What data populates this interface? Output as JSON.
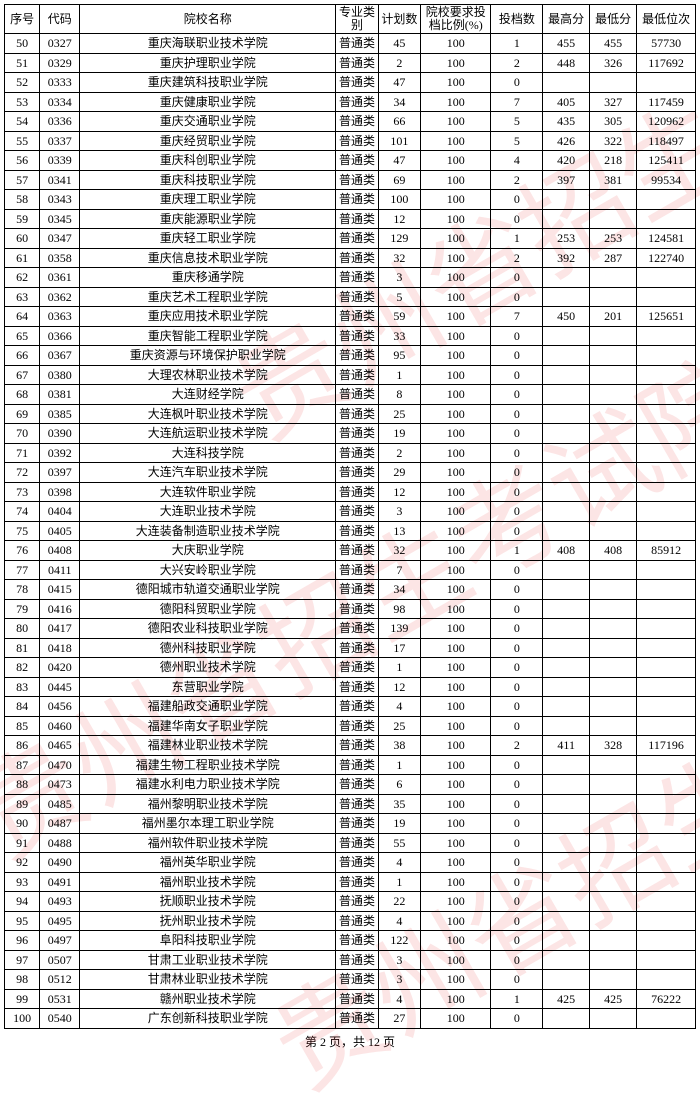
{
  "watermark_text": "贵州省招生考试院",
  "headers": {
    "seq": "序号",
    "code": "代码",
    "name": "院校名称",
    "category": "专业类别",
    "plan": "计划数",
    "ratio": "院校要求投档比例(%)",
    "filed": "投档数",
    "max": "最高分",
    "min": "最低分",
    "rank": "最低位次"
  },
  "footer": "第 2 页，共 12 页",
  "rows": [
    {
      "seq": "50",
      "code": "0327",
      "name": "重庆海联职业技术学院",
      "cat": "普通类",
      "plan": "45",
      "ratio": "100",
      "filed": "1",
      "max": "455",
      "min": "455",
      "rank": "57730"
    },
    {
      "seq": "51",
      "code": "0329",
      "name": "重庆护理职业学院",
      "cat": "普通类",
      "plan": "2",
      "ratio": "100",
      "filed": "2",
      "max": "448",
      "min": "326",
      "rank": "117692"
    },
    {
      "seq": "52",
      "code": "0333",
      "name": "重庆建筑科技职业学院",
      "cat": "普通类",
      "plan": "47",
      "ratio": "100",
      "filed": "0",
      "max": "",
      "min": "",
      "rank": ""
    },
    {
      "seq": "53",
      "code": "0334",
      "name": "重庆健康职业学院",
      "cat": "普通类",
      "plan": "34",
      "ratio": "100",
      "filed": "7",
      "max": "405",
      "min": "327",
      "rank": "117459"
    },
    {
      "seq": "54",
      "code": "0336",
      "name": "重庆交通职业学院",
      "cat": "普通类",
      "plan": "66",
      "ratio": "100",
      "filed": "5",
      "max": "435",
      "min": "305",
      "rank": "120962"
    },
    {
      "seq": "55",
      "code": "0337",
      "name": "重庆经贸职业学院",
      "cat": "普通类",
      "plan": "101",
      "ratio": "100",
      "filed": "5",
      "max": "426",
      "min": "322",
      "rank": "118497"
    },
    {
      "seq": "56",
      "code": "0339",
      "name": "重庆科创职业学院",
      "cat": "普通类",
      "plan": "47",
      "ratio": "100",
      "filed": "4",
      "max": "420",
      "min": "218",
      "rank": "125411"
    },
    {
      "seq": "57",
      "code": "0341",
      "name": "重庆科技职业学院",
      "cat": "普通类",
      "plan": "69",
      "ratio": "100",
      "filed": "2",
      "max": "397",
      "min": "381",
      "rank": "99534"
    },
    {
      "seq": "58",
      "code": "0343",
      "name": "重庆理工职业学院",
      "cat": "普通类",
      "plan": "100",
      "ratio": "100",
      "filed": "0",
      "max": "",
      "min": "",
      "rank": ""
    },
    {
      "seq": "59",
      "code": "0345",
      "name": "重庆能源职业学院",
      "cat": "普通类",
      "plan": "12",
      "ratio": "100",
      "filed": "0",
      "max": "",
      "min": "",
      "rank": ""
    },
    {
      "seq": "60",
      "code": "0347",
      "name": "重庆轻工职业学院",
      "cat": "普通类",
      "plan": "129",
      "ratio": "100",
      "filed": "1",
      "max": "253",
      "min": "253",
      "rank": "124581"
    },
    {
      "seq": "61",
      "code": "0358",
      "name": "重庆信息技术职业学院",
      "cat": "普通类",
      "plan": "32",
      "ratio": "100",
      "filed": "2",
      "max": "392",
      "min": "287",
      "rank": "122740"
    },
    {
      "seq": "62",
      "code": "0361",
      "name": "重庆移通学院",
      "cat": "普通类",
      "plan": "3",
      "ratio": "100",
      "filed": "0",
      "max": "",
      "min": "",
      "rank": ""
    },
    {
      "seq": "63",
      "code": "0362",
      "name": "重庆艺术工程职业学院",
      "cat": "普通类",
      "plan": "5",
      "ratio": "100",
      "filed": "0",
      "max": "",
      "min": "",
      "rank": ""
    },
    {
      "seq": "64",
      "code": "0363",
      "name": "重庆应用技术职业学院",
      "cat": "普通类",
      "plan": "59",
      "ratio": "100",
      "filed": "7",
      "max": "450",
      "min": "201",
      "rank": "125651"
    },
    {
      "seq": "65",
      "code": "0366",
      "name": "重庆智能工程职业学院",
      "cat": "普通类",
      "plan": "33",
      "ratio": "100",
      "filed": "0",
      "max": "",
      "min": "",
      "rank": ""
    },
    {
      "seq": "66",
      "code": "0367",
      "name": "重庆资源与环境保护职业学院",
      "cat": "普通类",
      "plan": "95",
      "ratio": "100",
      "filed": "0",
      "max": "",
      "min": "",
      "rank": ""
    },
    {
      "seq": "67",
      "code": "0380",
      "name": "大理农林职业技术学院",
      "cat": "普通类",
      "plan": "1",
      "ratio": "100",
      "filed": "0",
      "max": "",
      "min": "",
      "rank": ""
    },
    {
      "seq": "68",
      "code": "0381",
      "name": "大连财经学院",
      "cat": "普通类",
      "plan": "8",
      "ratio": "100",
      "filed": "0",
      "max": "",
      "min": "",
      "rank": ""
    },
    {
      "seq": "69",
      "code": "0385",
      "name": "大连枫叶职业技术学院",
      "cat": "普通类",
      "plan": "25",
      "ratio": "100",
      "filed": "0",
      "max": "",
      "min": "",
      "rank": ""
    },
    {
      "seq": "70",
      "code": "0390",
      "name": "大连航运职业技术学院",
      "cat": "普通类",
      "plan": "19",
      "ratio": "100",
      "filed": "0",
      "max": "",
      "min": "",
      "rank": ""
    },
    {
      "seq": "71",
      "code": "0392",
      "name": "大连科技学院",
      "cat": "普通类",
      "plan": "2",
      "ratio": "100",
      "filed": "0",
      "max": "",
      "min": "",
      "rank": ""
    },
    {
      "seq": "72",
      "code": "0397",
      "name": "大连汽车职业技术学院",
      "cat": "普通类",
      "plan": "29",
      "ratio": "100",
      "filed": "0",
      "max": "",
      "min": "",
      "rank": ""
    },
    {
      "seq": "73",
      "code": "0398",
      "name": "大连软件职业学院",
      "cat": "普通类",
      "plan": "12",
      "ratio": "100",
      "filed": "0",
      "max": "",
      "min": "",
      "rank": ""
    },
    {
      "seq": "74",
      "code": "0404",
      "name": "大连职业技术学院",
      "cat": "普通类",
      "plan": "3",
      "ratio": "100",
      "filed": "0",
      "max": "",
      "min": "",
      "rank": ""
    },
    {
      "seq": "75",
      "code": "0405",
      "name": "大连装备制造职业技术学院",
      "cat": "普通类",
      "plan": "13",
      "ratio": "100",
      "filed": "0",
      "max": "",
      "min": "",
      "rank": ""
    },
    {
      "seq": "76",
      "code": "0408",
      "name": "大庆职业学院",
      "cat": "普通类",
      "plan": "32",
      "ratio": "100",
      "filed": "1",
      "max": "408",
      "min": "408",
      "rank": "85912"
    },
    {
      "seq": "77",
      "code": "0411",
      "name": "大兴安岭职业学院",
      "cat": "普通类",
      "plan": "7",
      "ratio": "100",
      "filed": "0",
      "max": "",
      "min": "",
      "rank": ""
    },
    {
      "seq": "78",
      "code": "0415",
      "name": "德阳城市轨道交通职业学院",
      "cat": "普通类",
      "plan": "34",
      "ratio": "100",
      "filed": "0",
      "max": "",
      "min": "",
      "rank": ""
    },
    {
      "seq": "79",
      "code": "0416",
      "name": "德阳科贸职业学院",
      "cat": "普通类",
      "plan": "98",
      "ratio": "100",
      "filed": "0",
      "max": "",
      "min": "",
      "rank": ""
    },
    {
      "seq": "80",
      "code": "0417",
      "name": "德阳农业科技职业学院",
      "cat": "普通类",
      "plan": "139",
      "ratio": "100",
      "filed": "0",
      "max": "",
      "min": "",
      "rank": ""
    },
    {
      "seq": "81",
      "code": "0418",
      "name": "德州科技职业学院",
      "cat": "普通类",
      "plan": "17",
      "ratio": "100",
      "filed": "0",
      "max": "",
      "min": "",
      "rank": ""
    },
    {
      "seq": "82",
      "code": "0420",
      "name": "德州职业技术学院",
      "cat": "普通类",
      "plan": "1",
      "ratio": "100",
      "filed": "0",
      "max": "",
      "min": "",
      "rank": ""
    },
    {
      "seq": "83",
      "code": "0445",
      "name": "东营职业学院",
      "cat": "普通类",
      "plan": "12",
      "ratio": "100",
      "filed": "0",
      "max": "",
      "min": "",
      "rank": ""
    },
    {
      "seq": "84",
      "code": "0456",
      "name": "福建船政交通职业学院",
      "cat": "普通类",
      "plan": "4",
      "ratio": "100",
      "filed": "0",
      "max": "",
      "min": "",
      "rank": ""
    },
    {
      "seq": "85",
      "code": "0460",
      "name": "福建华南女子职业学院",
      "cat": "普通类",
      "plan": "25",
      "ratio": "100",
      "filed": "0",
      "max": "",
      "min": "",
      "rank": ""
    },
    {
      "seq": "86",
      "code": "0465",
      "name": "福建林业职业技术学院",
      "cat": "普通类",
      "plan": "38",
      "ratio": "100",
      "filed": "2",
      "max": "411",
      "min": "328",
      "rank": "117196"
    },
    {
      "seq": "87",
      "code": "0470",
      "name": "福建生物工程职业技术学院",
      "cat": "普通类",
      "plan": "1",
      "ratio": "100",
      "filed": "0",
      "max": "",
      "min": "",
      "rank": ""
    },
    {
      "seq": "88",
      "code": "0473",
      "name": "福建水利电力职业技术学院",
      "cat": "普通类",
      "plan": "6",
      "ratio": "100",
      "filed": "0",
      "max": "",
      "min": "",
      "rank": ""
    },
    {
      "seq": "89",
      "code": "0485",
      "name": "福州黎明职业技术学院",
      "cat": "普通类",
      "plan": "35",
      "ratio": "100",
      "filed": "0",
      "max": "",
      "min": "",
      "rank": ""
    },
    {
      "seq": "90",
      "code": "0487",
      "name": "福州墨尔本理工职业学院",
      "cat": "普通类",
      "plan": "19",
      "ratio": "100",
      "filed": "0",
      "max": "",
      "min": "",
      "rank": ""
    },
    {
      "seq": "91",
      "code": "0488",
      "name": "福州软件职业技术学院",
      "cat": "普通类",
      "plan": "55",
      "ratio": "100",
      "filed": "0",
      "max": "",
      "min": "",
      "rank": ""
    },
    {
      "seq": "92",
      "code": "0490",
      "name": "福州英华职业学院",
      "cat": "普通类",
      "plan": "4",
      "ratio": "100",
      "filed": "0",
      "max": "",
      "min": "",
      "rank": ""
    },
    {
      "seq": "93",
      "code": "0491",
      "name": "福州职业技术学院",
      "cat": "普通类",
      "plan": "1",
      "ratio": "100",
      "filed": "0",
      "max": "",
      "min": "",
      "rank": ""
    },
    {
      "seq": "94",
      "code": "0493",
      "name": "抚顺职业技术学院",
      "cat": "普通类",
      "plan": "22",
      "ratio": "100",
      "filed": "0",
      "max": "",
      "min": "",
      "rank": ""
    },
    {
      "seq": "95",
      "code": "0495",
      "name": "抚州职业技术学院",
      "cat": "普通类",
      "plan": "4",
      "ratio": "100",
      "filed": "0",
      "max": "",
      "min": "",
      "rank": ""
    },
    {
      "seq": "96",
      "code": "0497",
      "name": "阜阳科技职业学院",
      "cat": "普通类",
      "plan": "122",
      "ratio": "100",
      "filed": "0",
      "max": "",
      "min": "",
      "rank": ""
    },
    {
      "seq": "97",
      "code": "0507",
      "name": "甘肃工业职业技术学院",
      "cat": "普通类",
      "plan": "3",
      "ratio": "100",
      "filed": "0",
      "max": "",
      "min": "",
      "rank": ""
    },
    {
      "seq": "98",
      "code": "0512",
      "name": "甘肃林业职业技术学院",
      "cat": "普通类",
      "plan": "3",
      "ratio": "100",
      "filed": "0",
      "max": "",
      "min": "",
      "rank": ""
    },
    {
      "seq": "99",
      "code": "0531",
      "name": "赣州职业技术学院",
      "cat": "普通类",
      "plan": "4",
      "ratio": "100",
      "filed": "1",
      "max": "425",
      "min": "425",
      "rank": "76222"
    },
    {
      "seq": "100",
      "code": "0540",
      "name": "广东创新科技职业学院",
      "cat": "普通类",
      "plan": "27",
      "ratio": "100",
      "filed": "0",
      "max": "",
      "min": "",
      "rank": ""
    }
  ]
}
